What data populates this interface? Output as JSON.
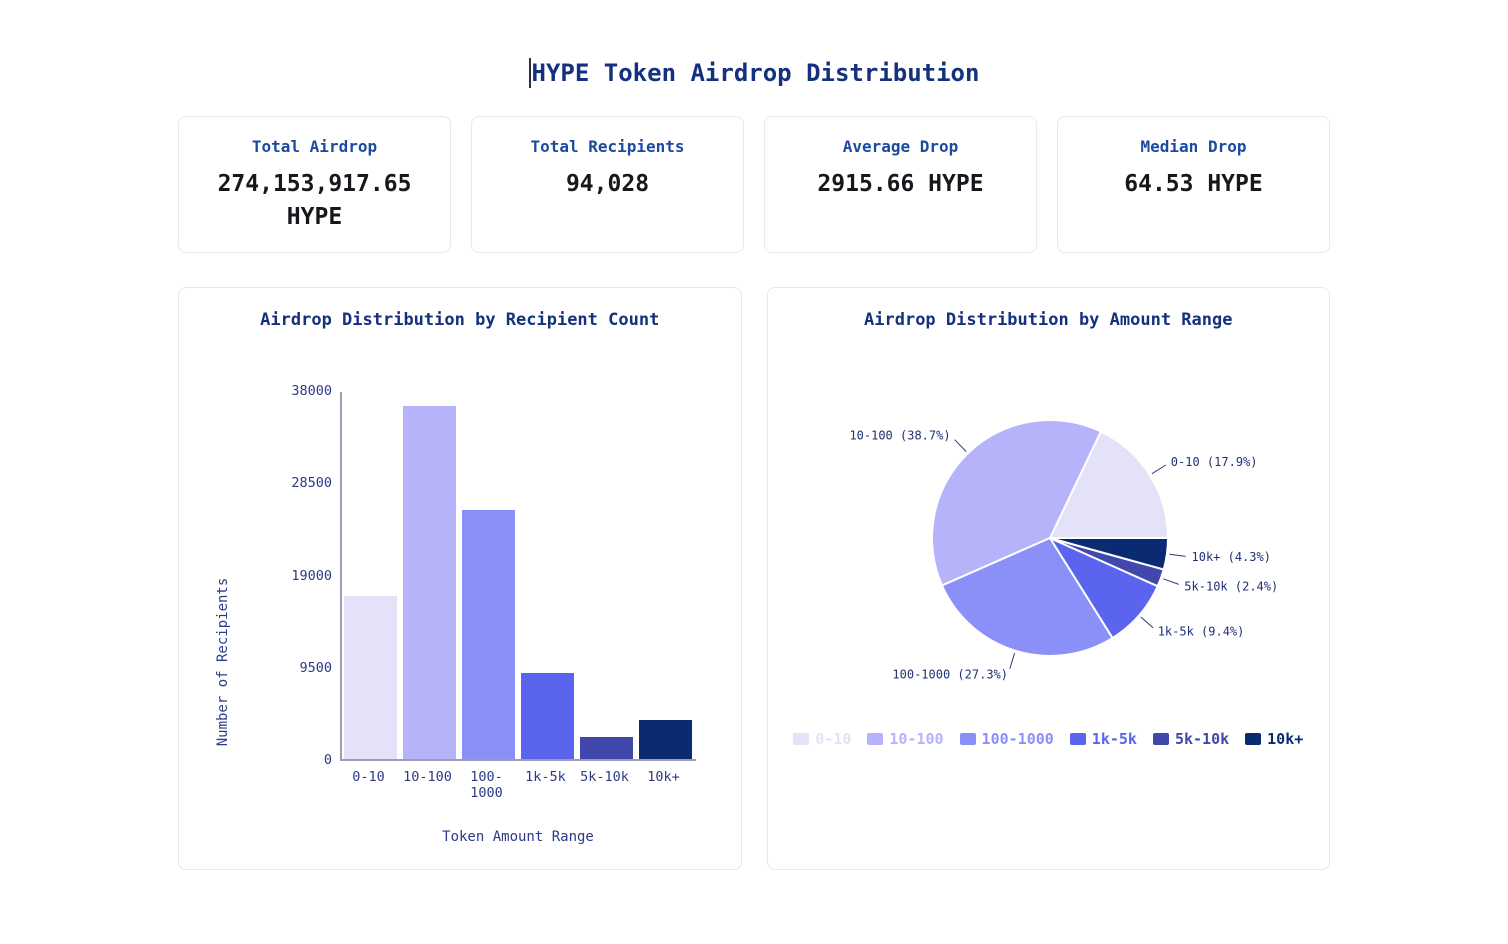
{
  "page": {
    "title": "HYPE Token Airdrop Distribution"
  },
  "stats": {
    "cards": [
      {
        "label": "Total Airdrop",
        "value": "274,153,917.65 HYPE"
      },
      {
        "label": "Total Recipients",
        "value": "94,028"
      },
      {
        "label": "Average Drop",
        "value": "2915.66 HYPE"
      },
      {
        "label": "Median Drop",
        "value": "64.53 HYPE"
      }
    ]
  },
  "chart_data": [
    {
      "type": "bar",
      "title": "Airdrop Distribution by Recipient Count",
      "categories": [
        "0-10",
        "10-100",
        "100-1000",
        "1k-5k",
        "5k-10k",
        "10k+"
      ],
      "values": [
        16831,
        36389,
        25670,
        8839,
        2257,
        4043
      ],
      "xlabel": "Token Amount Range",
      "ylabel": "Number of Recipients",
      "ylim": [
        0,
        38000
      ],
      "yticks": [
        0,
        9500,
        19000,
        28500,
        38000
      ],
      "bar_colors": [
        "#e3e2f8",
        "#b6b3fa",
        "#8a90f7",
        "#5a64ee",
        "#4247ae",
        "#0a2a72"
      ],
      "grid": false,
      "legend": false
    },
    {
      "type": "pie",
      "title": "Airdrop Distribution by Amount Range",
      "slices": [
        {
          "label": "0-10",
          "pct": 17.9,
          "color": "#e3e2f8"
        },
        {
          "label": "10-100",
          "pct": 38.7,
          "color": "#b6b3fa"
        },
        {
          "label": "100-1000",
          "pct": 27.3,
          "color": "#8a90f7"
        },
        {
          "label": "1k-5k",
          "pct": 9.4,
          "color": "#5a64ee"
        },
        {
          "label": "5k-10k",
          "pct": 2.4,
          "color": "#4247ae"
        },
        {
          "label": "10k+",
          "pct": 4.3,
          "color": "#0a2a72"
        }
      ],
      "start_angle_deg": 0,
      "direction": "counterclockwise",
      "legend_position": "bottom"
    }
  ],
  "colors": {
    "page_bg": "#ffffff",
    "card_border": "#e8e8ee",
    "title_text": "#13317c",
    "stat_label_text": "#1b4a9f",
    "stat_value_text": "#17171c",
    "axis_line": "#9b9db6",
    "tick_text": "#2c3a87",
    "pie_label_text": "#222f72"
  }
}
